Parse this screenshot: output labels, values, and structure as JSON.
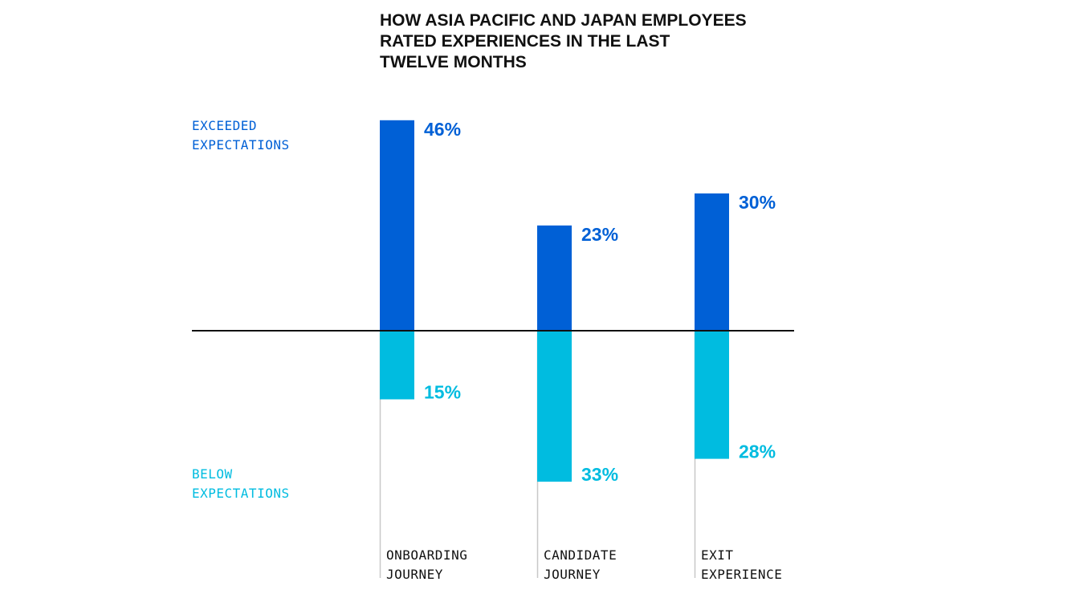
{
  "chart_data": {
    "type": "bar",
    "title": [
      "HOW ASIA PACIFIC AND JAPAN EMPLOYEES",
      "RATED EXPERIENCES IN THE LAST",
      "TWELVE MONTHS"
    ],
    "categories": [
      [
        "ONBOARDING",
        "JOURNEY"
      ],
      [
        "CANDIDATE",
        "JOURNEY"
      ],
      [
        "EXIT",
        "EXPERIENCE"
      ]
    ],
    "series": [
      {
        "name": [
          "EXCEEDED",
          "EXPECTATIONS"
        ],
        "direction": "up",
        "color": "#0060D6",
        "values": [
          46,
          23,
          30
        ],
        "labels": [
          "46%",
          "23%",
          "30%"
        ]
      },
      {
        "name": [
          "BELOW",
          "EXPECTATIONS"
        ],
        "direction": "down",
        "color": "#00BCE0",
        "values": [
          15,
          33,
          28
        ],
        "labels": [
          "15%",
          "33%",
          "28%"
        ]
      }
    ],
    "unit": "%",
    "axis_color": "#111111",
    "guide_color": "#C8C8C8",
    "grid": false,
    "legend": "left"
  }
}
